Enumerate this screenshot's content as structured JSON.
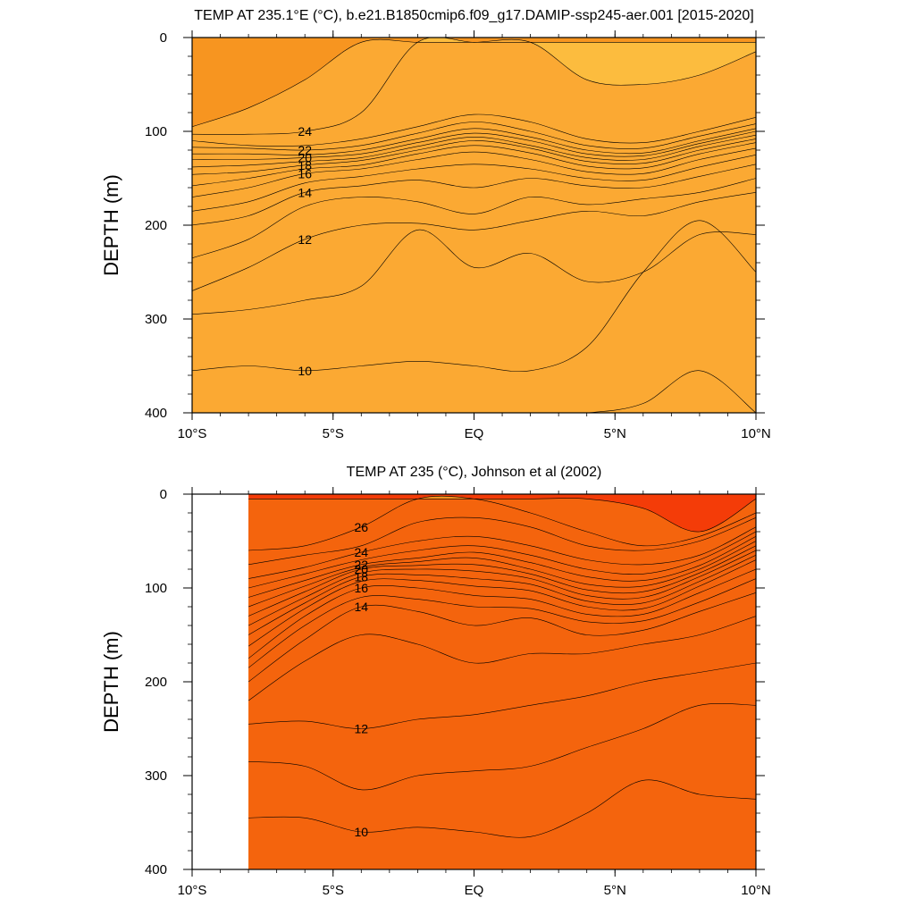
{
  "chart_data": [
    {
      "type": "contour",
      "title": "TEMP AT 235.1°E (°C), b.e21.B1850cmip6.f09_g17.DAMIP-ssp245-aer.001 [2015-2020]",
      "xlabel": "",
      "ylabel": "DEPTH (m)",
      "x_ticks": [
        "10°S",
        "5°S",
        "EQ",
        "5°N",
        "10°N"
      ],
      "y_ticks": [
        "0",
        "100",
        "200",
        "300",
        "400"
      ],
      "xlim": [
        -10,
        10
      ],
      "ylim": [
        400,
        0
      ],
      "y_inverted": true,
      "grid": false,
      "data_extent": [
        -10,
        10
      ],
      "contour_interval": 1,
      "x": [
        -10,
        -8,
        -6,
        -4,
        -2,
        0,
        2,
        4,
        6,
        8,
        10
      ],
      "isotherms": [
        {
          "level": 25,
          "depth": [
            95,
            75,
            45,
            5,
            5,
            5,
            5,
            45,
            50,
            40,
            15
          ],
          "label": ""
        },
        {
          "level": 24,
          "depth": [
            103,
            103,
            100,
            80,
            5,
            5,
            5,
            5,
            5,
            5,
            5
          ],
          "label": "24"
        },
        {
          "level": 23,
          "depth": [
            110,
            115,
            115,
            108,
            95,
            82,
            90,
            108,
            112,
            100,
            85
          ],
          "label": ""
        },
        {
          "level": 22,
          "depth": [
            117,
            118,
            120,
            115,
            102,
            90,
            100,
            115,
            118,
            105,
            92
          ],
          "label": "22"
        },
        {
          "level": 21,
          "depth": [
            124,
            124,
            125,
            120,
            108,
            97,
            106,
            120,
            123,
            110,
            97
          ],
          "label": ""
        },
        {
          "level": 20,
          "depth": [
            130,
            130,
            128,
            124,
            112,
            102,
            110,
            124,
            126,
            113,
            100
          ],
          "label": "20"
        },
        {
          "level": 19,
          "depth": [
            138,
            136,
            132,
            128,
            116,
            106,
            115,
            128,
            130,
            116,
            104
          ],
          "label": ""
        },
        {
          "level": 18,
          "depth": [
            146,
            143,
            136,
            131,
            120,
            110,
            118,
            132,
            134,
            120,
            108
          ],
          "label": "18"
        },
        {
          "level": 17,
          "depth": [
            158,
            150,
            140,
            136,
            124,
            115,
            123,
            137,
            139,
            124,
            112
          ],
          "label": ""
        },
        {
          "level": 16,
          "depth": [
            170,
            160,
            145,
            140,
            130,
            122,
            130,
            143,
            145,
            130,
            118
          ],
          "label": "16"
        },
        {
          "level": 15,
          "depth": [
            185,
            175,
            155,
            148,
            140,
            135,
            140,
            150,
            152,
            138,
            125
          ],
          "label": ""
        },
        {
          "level": 14,
          "depth": [
            200,
            190,
            165,
            158,
            152,
            160,
            150,
            158,
            160,
            148,
            135
          ],
          "label": "14"
        },
        {
          "level": 13,
          "depth": [
            235,
            215,
            180,
            170,
            175,
            188,
            170,
            178,
            172,
            165,
            150
          ],
          "label": ""
        },
        {
          "level": 12,
          "depth": [
            270,
            245,
            215,
            200,
            198,
            205,
            195,
            185,
            190,
            175,
            165
          ],
          "label": "12"
        },
        {
          "level": 11,
          "depth": [
            295,
            290,
            280,
            265,
            205,
            245,
            230,
            260,
            250,
            210,
            210
          ],
          "label": ""
        },
        {
          "level": 10,
          "depth": [
            355,
            350,
            355,
            350,
            345,
            350,
            355,
            330,
            250,
            195,
            250
          ],
          "label": "10"
        },
        {
          "level": 9,
          "depth": [
            400,
            400,
            400,
            400,
            400,
            400,
            400,
            400,
            390,
            355,
            400
          ],
          "label": ""
        }
      ]
    },
    {
      "type": "contour",
      "title": "TEMP AT 235 (°C), Johnson et al (2002)",
      "xlabel": "",
      "ylabel": "DEPTH (m)",
      "x_ticks": [
        "10°S",
        "5°S",
        "EQ",
        "5°N",
        "10°N"
      ],
      "y_ticks": [
        "0",
        "100",
        "200",
        "300",
        "400"
      ],
      "xlim": [
        -10,
        10
      ],
      "ylim": [
        400,
        0
      ],
      "y_inverted": true,
      "grid": false,
      "data_extent": [
        -8,
        10
      ],
      "contour_interval": 1,
      "x": [
        -8,
        -6,
        -4,
        -2,
        0,
        2,
        4,
        6,
        8,
        10
      ],
      "isotherms": [
        {
          "level": 27,
          "depth": [
            5,
            5,
            5,
            5,
            5,
            5,
            5,
            15,
            40,
            5
          ],
          "label": ""
        },
        {
          "level": 26,
          "depth": [
            60,
            55,
            35,
            5,
            5,
            20,
            40,
            55,
            45,
            20
          ],
          "label": "26"
        },
        {
          "level": 25,
          "depth": [
            75,
            65,
            55,
            30,
            25,
            35,
            55,
            60,
            50,
            25
          ],
          "label": ""
        },
        {
          "level": 24,
          "depth": [
            90,
            78,
            62,
            50,
            45,
            55,
            70,
            75,
            65,
            35
          ],
          "label": "24"
        },
        {
          "level": 23,
          "depth": [
            100,
            85,
            70,
            60,
            55,
            65,
            80,
            85,
            70,
            40
          ],
          "label": ""
        },
        {
          "level": 22,
          "depth": [
            110,
            92,
            75,
            68,
            62,
            73,
            88,
            92,
            76,
            45
          ],
          "label": "22"
        },
        {
          "level": 21,
          "depth": [
            120,
            98,
            78,
            72,
            68,
            80,
            96,
            98,
            80,
            50
          ],
          "label": ""
        },
        {
          "level": 20,
          "depth": [
            130,
            104,
            80,
            76,
            75,
            85,
            102,
            104,
            84,
            55
          ],
          "label": "20"
        },
        {
          "level": 19,
          "depth": [
            140,
            110,
            84,
            80,
            82,
            90,
            108,
            110,
            88,
            60
          ],
          "label": ""
        },
        {
          "level": 18,
          "depth": [
            150,
            116,
            88,
            86,
            90,
            96,
            114,
            116,
            93,
            65
          ],
          "label": "18"
        },
        {
          "level": 17,
          "depth": [
            162,
            122,
            93,
            92,
            98,
            103,
            120,
            122,
            98,
            70
          ],
          "label": ""
        },
        {
          "level": 16,
          "depth": [
            175,
            130,
            100,
            100,
            108,
            112,
            128,
            128,
            105,
            80
          ],
          "label": "16"
        },
        {
          "level": 15,
          "depth": [
            185,
            140,
            110,
            112,
            120,
            122,
            136,
            135,
            115,
            90
          ],
          "label": ""
        },
        {
          "level": 14,
          "depth": [
            200,
            155,
            120,
            125,
            140,
            132,
            150,
            145,
            125,
            105
          ],
          "label": "14"
        },
        {
          "level": 13,
          "depth": [
            220,
            178,
            150,
            160,
            180,
            170,
            170,
            160,
            150,
            130
          ],
          "label": ""
        },
        {
          "level": 12,
          "depth": [
            245,
            242,
            250,
            240,
            235,
            225,
            215,
            200,
            190,
            180
          ],
          "label": "12"
        },
        {
          "level": 11,
          "depth": [
            285,
            290,
            315,
            300,
            295,
            290,
            270,
            250,
            225,
            225
          ],
          "label": ""
        },
        {
          "level": 10,
          "depth": [
            345,
            345,
            360,
            355,
            360,
            365,
            340,
            305,
            320,
            325
          ],
          "label": "10"
        }
      ]
    }
  ],
  "colors": {
    "levels_min": 9,
    "scale": [
      {
        "t": 9,
        "color": "#1e50f0"
      },
      {
        "t": 10,
        "color": "#1a6ff0"
      },
      {
        "t": 11,
        "color": "#0a90f5"
      },
      {
        "t": 12,
        "color": "#0fb4f5"
      },
      {
        "t": 13,
        "color": "#1cd7f8"
      },
      {
        "t": 14,
        "color": "#30f0f4"
      },
      {
        "t": 15,
        "color": "#18e6c0"
      },
      {
        "t": 16,
        "color": "#00dc8c"
      },
      {
        "t": 17,
        "color": "#14d20c"
      },
      {
        "t": 18,
        "color": "#80f008"
      },
      {
        "t": 19,
        "color": "#e0f020"
      },
      {
        "t": 20,
        "color": "#fcfc1c"
      },
      {
        "t": 21,
        "color": "#fdec36"
      },
      {
        "t": 22,
        "color": "#fad848"
      },
      {
        "t": 23,
        "color": "#fcc444"
      },
      {
        "t": 24,
        "color": "#fbb338"
      },
      {
        "t": 25,
        "color": "#fa9f2e"
      },
      {
        "t": 26,
        "color": "#f48b12"
      },
      {
        "t": 27,
        "color": "#f43c08"
      },
      {
        "t": 28,
        "color": "#f43c08"
      }
    ]
  }
}
